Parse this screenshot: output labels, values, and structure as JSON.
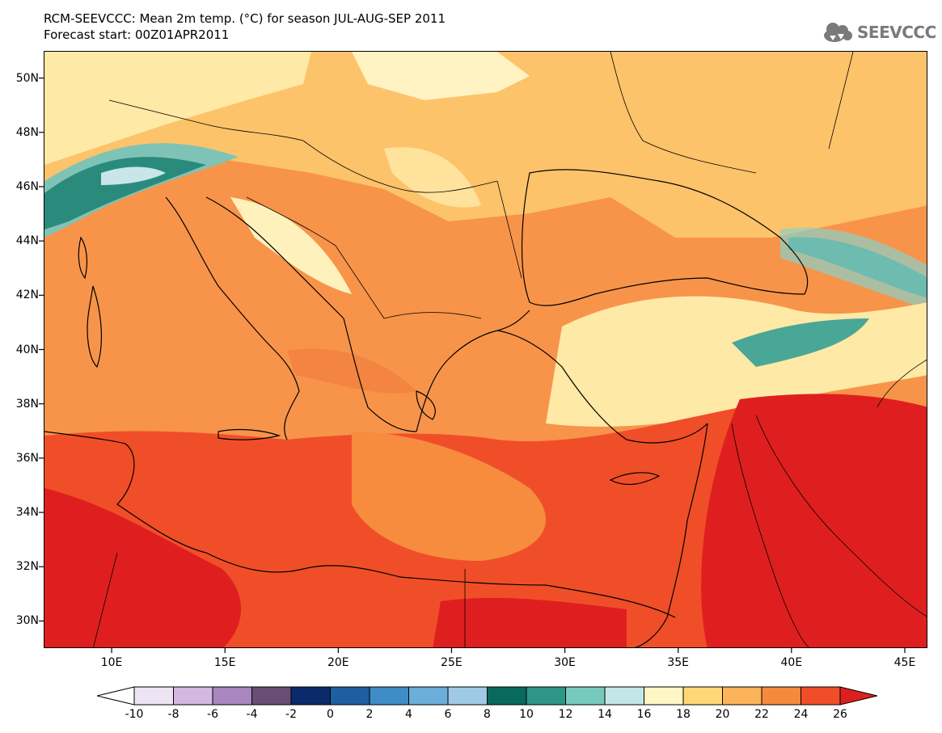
{
  "title": {
    "line1": "RCM-SEEVCCC: Mean 2m temp. (°C) for season JUL-AUG-SEP 2011",
    "line2": "Forecast start: 00Z01APR2011"
  },
  "logo": {
    "text": "SEEVCCC",
    "icon": "cloud-icon"
  },
  "map": {
    "lon_range": [
      7,
      46
    ],
    "lat_range": [
      29,
      51
    ],
    "lat_labels": [
      "50N",
      "48N",
      "46N",
      "44N",
      "42N",
      "40N",
      "38N",
      "36N",
      "34N",
      "32N",
      "30N"
    ],
    "lat_values": [
      50,
      48,
      46,
      44,
      42,
      40,
      38,
      36,
      34,
      32,
      30
    ],
    "lon_labels": [
      "10E",
      "15E",
      "20E",
      "25E",
      "30E",
      "35E",
      "40E",
      "45E"
    ],
    "lon_values": [
      10,
      15,
      20,
      25,
      30,
      35,
      40,
      45
    ]
  },
  "colorbar": {
    "labels": [
      "-10",
      "-8",
      "-6",
      "-4",
      "-2",
      "0",
      "2",
      "4",
      "6",
      "8",
      "10",
      "12",
      "14",
      "16",
      "18",
      "20",
      "22",
      "24",
      "26"
    ],
    "colors": [
      "#efe4f4",
      "#d6b6e2",
      "#a986bf",
      "#6b4c74",
      "#0a2a6b",
      "#1d5fa0",
      "#3f8cc7",
      "#6aaed9",
      "#9fcae6",
      "#08695c",
      "#2e9688",
      "#78c9bd",
      "#c2e7e6",
      "#fff5c5",
      "#ffd875",
      "#fdb35a",
      "#f68a3c",
      "#f04e28"
    ],
    "under_color": "#ffffff",
    "over_color": "#df1f1f"
  }
}
